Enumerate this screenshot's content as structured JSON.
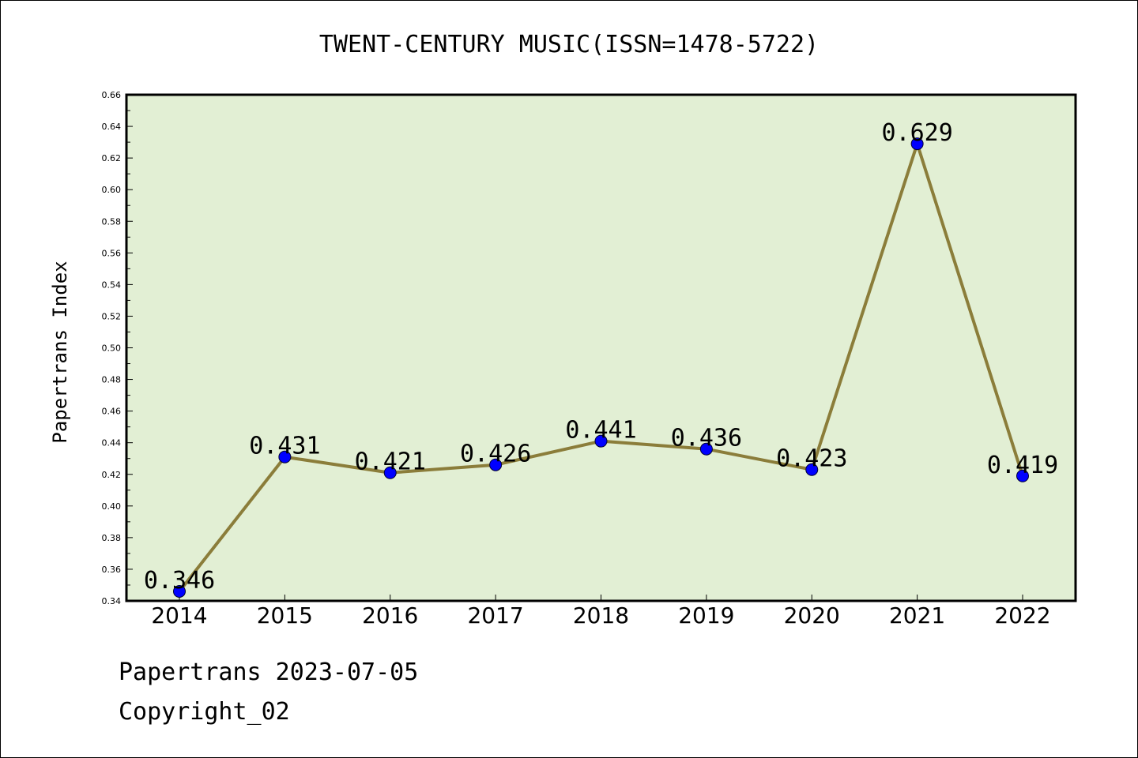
{
  "chart_data": {
    "type": "line",
    "title": "TWENT-CENTURY MUSIC(ISSN=1478-5722)",
    "xlabel": "",
    "ylabel": "Papertrans Index",
    "categories": [
      "2014",
      "2015",
      "2016",
      "2017",
      "2018",
      "2019",
      "2020",
      "2021",
      "2022"
    ],
    "series": [
      {
        "values": [
          0.346,
          0.431,
          0.421,
          0.426,
          0.441,
          0.436,
          0.423,
          0.629,
          0.419
        ],
        "data_labels": [
          "0.346",
          "0.431",
          "0.421",
          "0.426",
          "0.441",
          "0.436",
          "0.423",
          "0.629",
          "0.419"
        ]
      }
    ],
    "ylim": [
      0.34,
      0.66
    ],
    "yticks": [
      "0.34",
      "0.36",
      "0.38",
      "0.40",
      "0.42",
      "0.44",
      "0.46",
      "0.48",
      "0.50",
      "0.52",
      "0.54",
      "0.56",
      "0.58",
      "0.60",
      "0.62",
      "0.64",
      "0.66"
    ],
    "grid": false,
    "legend": "none",
    "colors": {
      "plot_background": "#e2efd4",
      "line": "#8b7d3a",
      "marker": "#0000ff"
    }
  },
  "footer": {
    "line1": "Papertrans 2023-07-05",
    "line2": "Copyright_02"
  }
}
